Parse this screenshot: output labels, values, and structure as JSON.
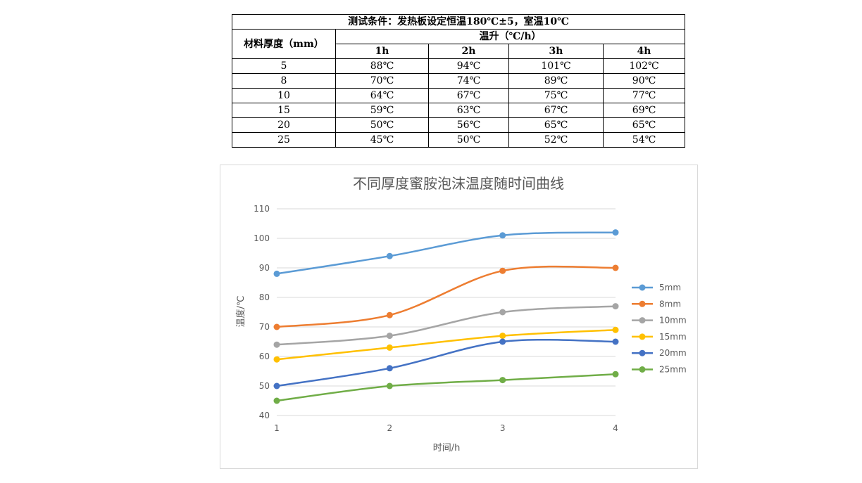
{
  "table": {
    "condition": "测试条件：发热板设定恒温180℃±5，室温10℃",
    "thickness_header": "材料厚度（mm）",
    "rise_header": "温升（℃/h）",
    "time_headers": [
      "1h",
      "2h",
      "3h",
      "4h"
    ],
    "rows": [
      {
        "thickness": "5",
        "values": [
          "88℃",
          "94℃",
          "101℃",
          "102℃"
        ]
      },
      {
        "thickness": "8",
        "values": [
          "70℃",
          "74℃",
          "89℃",
          "90℃"
        ]
      },
      {
        "thickness": "10",
        "values": [
          "64℃",
          "67℃",
          "75℃",
          "77℃"
        ]
      },
      {
        "thickness": "15",
        "values": [
          "59℃",
          "63℃",
          "67℃",
          "69℃"
        ]
      },
      {
        "thickness": "20",
        "values": [
          "50℃",
          "56℃",
          "65℃",
          "65℃"
        ]
      },
      {
        "thickness": "25",
        "values": [
          "45℃",
          "50℃",
          "52℃",
          "54℃"
        ]
      }
    ]
  },
  "chart_data": {
    "type": "line",
    "title": "不同厚度蜜胺泡沫温度随时间曲线",
    "xlabel": "时间/h",
    "ylabel": "温度/℃",
    "x": [
      1,
      2,
      3,
      4
    ],
    "xticks": [
      "1",
      "2",
      "3",
      "4"
    ],
    "ylim": [
      40,
      110
    ],
    "yticks": [
      "40",
      "50",
      "60",
      "70",
      "80",
      "90",
      "100",
      "110"
    ],
    "grid": true,
    "legend": "right",
    "series": [
      {
        "name": "5mm",
        "color": "#5b9bd5",
        "values": [
          88,
          94,
          101,
          102
        ]
      },
      {
        "name": "8mm",
        "color": "#ed7d31",
        "values": [
          70,
          74,
          89,
          90
        ]
      },
      {
        "name": "10mm",
        "color": "#a5a5a5",
        "values": [
          64,
          67,
          75,
          77
        ]
      },
      {
        "name": "15mm",
        "color": "#ffc000",
        "values": [
          59,
          63,
          67,
          69
        ]
      },
      {
        "name": "20mm",
        "color": "#4472c4",
        "values": [
          50,
          56,
          65,
          65
        ]
      },
      {
        "name": "25mm",
        "color": "#70ad47",
        "values": [
          45,
          50,
          52,
          54
        ]
      }
    ]
  }
}
